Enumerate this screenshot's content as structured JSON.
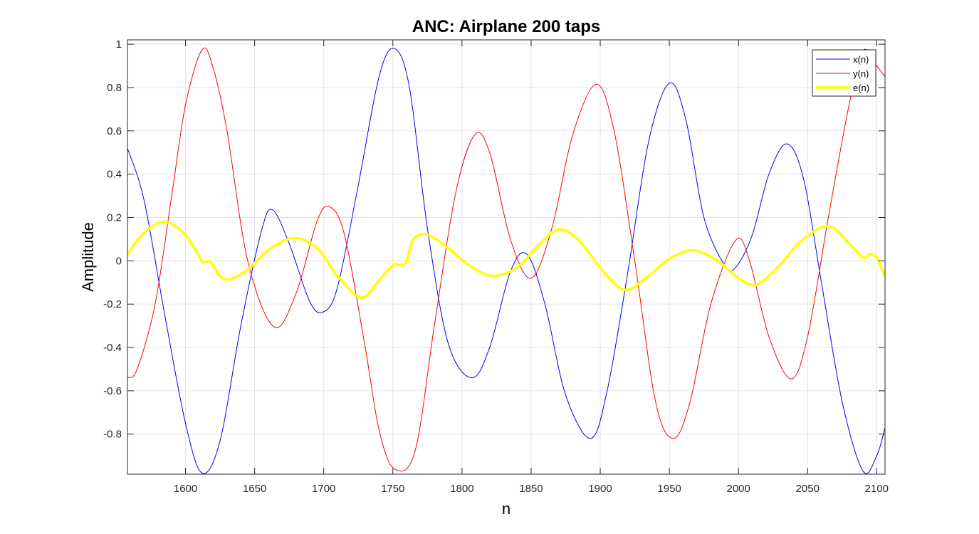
{
  "chart_data": {
    "type": "line",
    "title": "ANC: Airplane 200 taps",
    "xlabel": "n",
    "ylabel": "Amplitude",
    "xlim": [
      1558,
      2106
    ],
    "ylim": [
      -0.985,
      1.02
    ],
    "xticks": [
      1600,
      1650,
      1700,
      1750,
      1800,
      1850,
      1900,
      1950,
      2000,
      2050,
      2100
    ],
    "yticks": [
      -0.8,
      -0.6,
      -0.4,
      -0.2,
      0,
      0.2,
      0.4,
      0.6,
      0.8,
      1
    ],
    "xtick_labels": [
      "1600",
      "1650",
      "1700",
      "1750",
      "1800",
      "1850",
      "1900",
      "1950",
      "2000",
      "2050",
      "2100"
    ],
    "ytick_labels": [
      "-0.8",
      "-0.6",
      "-0.4",
      "-0.2",
      "0",
      "0.2",
      "0.4",
      "0.6",
      "0.8",
      "1"
    ],
    "grid": true,
    "legend_position": "top-right",
    "series": [
      {
        "name": "x(n)",
        "color": "#0000ff",
        "line_width": "thin",
        "x": [
          1558,
          1570,
          1585,
          1600,
          1612,
          1625,
          1640,
          1655,
          1663,
          1675,
          1690,
          1700,
          1710,
          1725,
          1740,
          1751,
          1762,
          1775,
          1790,
          1807,
          1820,
          1835,
          1847,
          1860,
          1875,
          1893,
          1905,
          1920,
          1935,
          1950,
          1962,
          1975,
          1990,
          1998,
          2010,
          2022,
          2035,
          2047,
          2060,
          2075,
          2090,
          2100,
          2106
        ],
        "y": [
          0.52,
          0.28,
          -0.25,
          -0.75,
          -0.98,
          -0.83,
          -0.3,
          0.14,
          0.235,
          0.08,
          -0.19,
          -0.235,
          -0.12,
          0.35,
          0.85,
          0.98,
          0.8,
          0.15,
          -0.38,
          -0.54,
          -0.4,
          -0.05,
          0.03,
          -0.2,
          -0.62,
          -0.82,
          -0.6,
          -0.05,
          0.55,
          0.82,
          0.65,
          0.2,
          -0.02,
          -0.03,
          0.12,
          0.4,
          0.54,
          0.38,
          -0.1,
          -0.65,
          -0.97,
          -0.9,
          -0.77
        ]
      },
      {
        "name": "y(n)",
        "color": "#ff0000",
        "line_width": "thin",
        "x": [
          1558,
          1565,
          1578,
          1590,
          1600,
          1612,
          1620,
          1630,
          1645,
          1664,
          1680,
          1695,
          1704,
          1715,
          1730,
          1740,
          1751,
          1766,
          1780,
          1795,
          1809,
          1820,
          1835,
          1850,
          1865,
          1880,
          1897,
          1910,
          1925,
          1940,
          1953,
          1965,
          1980,
          1998,
          2008,
          2022,
          2038,
          2050,
          2065,
          2080,
          2090,
          2100,
          2106
        ],
        "y": [
          -0.54,
          -0.5,
          -0.2,
          0.3,
          0.72,
          0.975,
          0.89,
          0.6,
          0.0,
          -0.305,
          -0.15,
          0.18,
          0.25,
          0.12,
          -0.4,
          -0.78,
          -0.96,
          -0.88,
          -0.3,
          0.3,
          0.58,
          0.5,
          0.1,
          -0.08,
          0.15,
          0.58,
          0.815,
          0.6,
          0.0,
          -0.65,
          -0.82,
          -0.65,
          -0.2,
          0.095,
          0.0,
          -0.35,
          -0.545,
          -0.35,
          0.2,
          0.72,
          0.97,
          0.9,
          0.85
        ]
      },
      {
        "name": "e(n)",
        "color": "#ffff00",
        "line_width": "thick",
        "x": [
          1558,
          1570,
          1585,
          1600,
          1612,
          1618,
          1625,
          1632,
          1645,
          1660,
          1678,
          1695,
          1710,
          1727,
          1740,
          1750,
          1756,
          1760,
          1765,
          1775,
          1790,
          1805,
          1822,
          1840,
          1855,
          1870,
          1885,
          1905,
          1919,
          1935,
          1950,
          1967,
          1985,
          2000,
          2013,
          2030,
          2045,
          2065,
          2080,
          2090,
          2095,
          2100,
          2106
        ],
        "y": [
          0.03,
          0.13,
          0.18,
          0.12,
          0.0,
          -0.005,
          -0.07,
          -0.085,
          -0.04,
          0.05,
          0.105,
          0.06,
          -0.07,
          -0.17,
          -0.09,
          -0.02,
          -0.02,
          0.0,
          0.1,
          0.12,
          0.06,
          -0.02,
          -0.07,
          -0.03,
          0.07,
          0.145,
          0.09,
          -0.07,
          -0.135,
          -0.07,
          0.01,
          0.048,
          0.0,
          -0.08,
          -0.11,
          -0.02,
          0.09,
          0.16,
          0.08,
          0.015,
          0.03,
          0.015,
          -0.07
        ]
      }
    ]
  }
}
